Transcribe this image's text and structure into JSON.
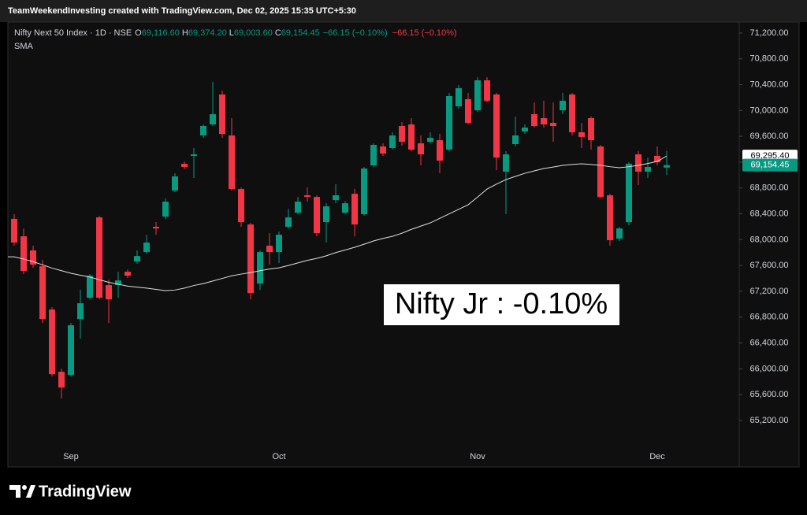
{
  "header": {
    "attribution": "TeamWeekendInvesting created with TradingView.com, Dec 02, 2025 15:35 UTC+5:30",
    "symbol": "Nifty Next 50 Index · 1D · NSE",
    "ohlc": [
      {
        "key": "O",
        "value": "69,116.60"
      },
      {
        "key": "H",
        "value": "69,374.20"
      },
      {
        "key": "L",
        "value": "69,003.60"
      },
      {
        "key": "C",
        "value": "69,154.45"
      }
    ],
    "change": "−66.15 (−0.10%)",
    "change_day": "−66.15 (−0.10%)"
  },
  "chart_data": {
    "type": "candlestick",
    "categories": [
      null,
      null,
      null,
      null,
      null,
      null,
      "Sep",
      null,
      null,
      null,
      null,
      null,
      null,
      null,
      null,
      null,
      null,
      null,
      null,
      null,
      null,
      null,
      null,
      null,
      null,
      null,
      null,
      null,
      "Oct",
      null,
      null,
      null,
      null,
      null,
      null,
      null,
      null,
      null,
      null,
      null,
      null,
      null,
      null,
      null,
      null,
      null,
      null,
      null,
      null,
      "Nov",
      null,
      null,
      null,
      null,
      null,
      null,
      null,
      null,
      null,
      null,
      null,
      null,
      null,
      null,
      null,
      null,
      null,
      null,
      "Dec",
      null
    ],
    "open": [
      68322,
      68052,
      67833,
      67589,
      66918,
      65954,
      65905,
      66771,
      67101,
      68345,
      67296,
      67296,
      67503,
      67662,
      67808,
      68199,
      68357,
      68760,
      69175,
      69297,
      69614,
      69785,
      70248,
      69614,
      68784,
      68235,
      67320,
      67906,
      67808,
      68199,
      68418,
      68687,
      68662,
      68272,
      68613,
      68418,
      68711,
      68394,
      69150,
      69443,
      69419,
      69760,
      69785,
      69492,
      69516,
      69541,
      69394,
      70065,
      70175,
      70004,
      70468,
      70248,
      69053,
      69480,
      69675,
      69943,
      69882,
      69809,
      70004,
      70248,
      69663,
      69882,
      69443,
      68687,
      68016,
      68272,
      69321,
      69053,
      69297,
      69116.6
    ],
    "high": [
      68395,
      68174,
      67907,
      67686,
      66954,
      66003,
      66710,
      67223,
      67467,
      68370,
      67381,
      67503,
      67540,
      67833,
      68077,
      68272,
      68638,
      69028,
      69211,
      69419,
      69785,
      70444,
      70309,
      69882,
      68809,
      68260,
      67833,
      68101,
      68126,
      68479,
      68662,
      68809,
      68687,
      68565,
      68858,
      68601,
      68784,
      69126,
      69492,
      69492,
      69663,
      69821,
      69882,
      69614,
      69663,
      69638,
      70273,
      70395,
      70273,
      70517,
      70517,
      70273,
      69370,
      69907,
      69785,
      70126,
      70151,
      70126,
      70273,
      70273,
      69809,
      69907,
      69468,
      68711,
      68199,
      69199,
      69370,
      69272,
      69443,
      69374.2
    ],
    "low": [
      67907,
      67467,
      67564,
      66710,
      65881,
      65539,
      65881,
      66466,
      67076,
      67076,
      66710,
      67101,
      67406,
      67625,
      67784,
      68077,
      68321,
      68736,
      69089,
      68955,
      69577,
      69760,
      69577,
      68760,
      68199,
      67076,
      67223,
      67613,
      67638,
      68174,
      68394,
      68589,
      68052,
      67955,
      68565,
      68394,
      68052,
      68370,
      69126,
      69297,
      69394,
      69455,
      69370,
      69150,
      69492,
      69028,
      69370,
      70029,
      69785,
      69980,
      70126,
      69077,
      68394,
      69443,
      69638,
      69736,
      69736,
      69516,
      69943,
      69614,
      69419,
      69394,
      68638,
      67907,
      67980,
      68223,
      68845,
      68955,
      69150,
      69003.6
    ],
    "close": [
      67956,
      67516,
      67613,
      66771,
      65917,
      65710,
      66674,
      67015,
      67442,
      67101,
      67076,
      67369,
      67442,
      67747,
      67956,
      68174,
      68589,
      68980,
      69126,
      69321,
      69760,
      69943,
      69638,
      68784,
      68272,
      67174,
      67808,
      67808,
      68077,
      68345,
      68589,
      68662,
      68101,
      68516,
      68687,
      68564,
      68235,
      69102,
      69468,
      69334,
      69614,
      69516,
      69394,
      69321,
      69577,
      69224,
      70224,
      70346,
      69809,
      70468,
      70151,
      69272,
      69321,
      69614,
      69736,
      69760,
      69785,
      69760,
      70151,
      69663,
      69590,
      69541,
      68662,
      67992,
      68174,
      69175,
      69053,
      69126,
      69199,
      69154.45
    ],
    "up_color": "#089981",
    "down_color": "#f23645",
    "series": [
      {
        "name": "SMA",
        "color": "#e0e0e0",
        "values": [
          67735,
          67700,
          67660,
          67610,
          67560,
          67520,
          67480,
          67450,
          67420,
          67380,
          67340,
          67310,
          67280,
          67265,
          67250,
          67230,
          67210,
          67220,
          67250,
          67290,
          67320,
          67360,
          67400,
          67440,
          67467,
          67490,
          67520,
          67545,
          67564,
          67600,
          67640,
          67680,
          67710,
          67750,
          67800,
          67840,
          67882,
          67930,
          67980,
          68020,
          68052,
          68100,
          68160,
          68210,
          68260,
          68330,
          68400,
          68470,
          68540,
          68660,
          68784,
          68860,
          68930,
          68980,
          69028,
          69065,
          69102,
          69125,
          69150,
          69165,
          69175,
          69165,
          69150,
          69130,
          69114,
          69130,
          69150,
          69180,
          69211,
          69295.4
        ]
      }
    ],
    "ylim": [
      64480,
      71370
    ],
    "yticks": [
      {
        "value": 65200,
        "label": "65,200.00"
      },
      {
        "value": 65600,
        "label": "65,600.00"
      },
      {
        "value": 66000,
        "label": "66,000.00"
      },
      {
        "value": 66400,
        "label": "66,400.00"
      },
      {
        "value": 66800,
        "label": "66,800.00"
      },
      {
        "value": 67200,
        "label": "67,200.00"
      },
      {
        "value": 67600,
        "label": "67,600.00"
      },
      {
        "value": 68000,
        "label": "68,000.00"
      },
      {
        "value": 68400,
        "label": "68,400.00"
      },
      {
        "value": 68800,
        "label": "68,800.00"
      },
      {
        "value": 69200,
        "label": "69,200.00"
      },
      {
        "value": 69600,
        "label": "69,600.00"
      },
      {
        "value": 70000,
        "label": "70,000.00"
      },
      {
        "value": 70400,
        "label": "70,400.00"
      },
      {
        "value": 70800,
        "label": "70,800.00"
      },
      {
        "value": 71200,
        "label": "71,200.00"
      }
    ],
    "grid": false,
    "price_labels": [
      {
        "value": 69295.4,
        "label": "69,295.40",
        "color": "#ffffff",
        "text_color": "#000000"
      },
      {
        "value": 69154.45,
        "label": "69,154.45",
        "color": "#089981",
        "text_color": "#ffffff"
      }
    ],
    "annotation": "Nifty Jr : -0.10%"
  },
  "footer": {
    "logo": "TradingView"
  }
}
